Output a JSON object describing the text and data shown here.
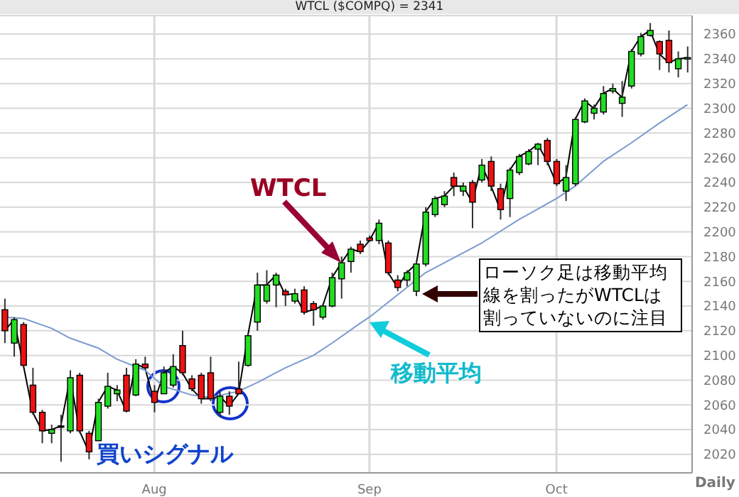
{
  "chart_data": {
    "type": "candlestick",
    "title": "WTCL ($COMPQ) = 2341",
    "categories": [
      null,
      null,
      null,
      null,
      null,
      null,
      null,
      null,
      null,
      null,
      null,
      null,
      null,
      null,
      null,
      null,
      "Aug",
      null,
      null,
      null,
      null,
      null,
      null,
      null,
      null,
      null,
      null,
      null,
      null,
      null,
      null,
      null,
      null,
      null,
      null,
      null,
      null,
      null,
      null,
      "Sep",
      null,
      null,
      null,
      null,
      null,
      null,
      null,
      null,
      null,
      null,
      null,
      null,
      null,
      null,
      null,
      null,
      null,
      null,
      null,
      "Oct",
      null,
      null,
      null,
      null,
      null,
      null,
      null,
      null,
      null,
      null,
      null,
      null,
      null,
      null
    ],
    "ohlc": [
      [
        2137,
        2146,
        2110,
        2120
      ],
      [
        2110,
        2131,
        2099,
        2129
      ],
      [
        2125,
        2127,
        2090,
        2092
      ],
      [
        2076,
        2090,
        2052,
        2054
      ],
      [
        2054,
        2056,
        2029,
        2039
      ],
      [
        2037,
        2044,
        2029,
        2040
      ],
      [
        2042,
        2052,
        2014,
        2043
      ],
      [
        2039,
        2088,
        2037,
        2082
      ],
      [
        2084,
        2086,
        2037,
        2039
      ],
      [
        2037,
        2039,
        2016,
        2022
      ],
      [
        2031,
        2065,
        2031,
        2062
      ],
      [
        2059,
        2086,
        2057,
        2075
      ],
      [
        2069,
        2076,
        2063,
        2072
      ],
      [
        2084,
        2090,
        2054,
        2055
      ],
      [
        2068,
        2097,
        2067,
        2093
      ],
      [
        2093,
        2099,
        2090,
        2090
      ],
      [
        2071,
        2076,
        2054,
        2062
      ],
      [
        2069,
        2091,
        2069,
        2086
      ],
      [
        2076,
        2101,
        2074,
        2091
      ],
      [
        2108,
        2120,
        2084,
        2086
      ],
      [
        2081,
        2084,
        2071,
        2073
      ],
      [
        2084,
        2086,
        2061,
        2065
      ],
      [
        2086,
        2099,
        2063,
        2065
      ],
      [
        2054,
        2071,
        2050,
        2067
      ],
      [
        2067,
        2071,
        2052,
        2059
      ],
      [
        2073,
        2095,
        2069,
        2069
      ],
      [
        2092,
        2118,
        2091,
        2116
      ],
      [
        2127,
        2167,
        2120,
        2157
      ],
      [
        2144,
        2169,
        2142,
        2157
      ],
      [
        2157,
        2167,
        2139,
        2165
      ],
      [
        2152,
        2154,
        2140,
        2149
      ],
      [
        2144,
        2154,
        2142,
        2150
      ],
      [
        2153,
        2156,
        2133,
        2135
      ],
      [
        2142,
        2144,
        2124,
        2137
      ],
      [
        2131,
        2142,
        2129,
        2140
      ],
      [
        2140,
        2167,
        2139,
        2163
      ],
      [
        2162,
        2180,
        2146,
        2175
      ],
      [
        2176,
        2188,
        2167,
        2186
      ],
      [
        2190,
        2193,
        2182,
        2184
      ],
      [
        2195,
        2197,
        2192,
        2193
      ],
      [
        2193,
        2210,
        2190,
        2207
      ],
      [
        2191,
        2193,
        2165,
        2167
      ],
      [
        2161,
        2165,
        2152,
        2155
      ],
      [
        2161,
        2169,
        2156,
        2167
      ],
      [
        2152,
        2176,
        2148,
        2174
      ],
      [
        2174,
        2220,
        2172,
        2216
      ],
      [
        2214,
        2229,
        2212,
        2227
      ],
      [
        2222,
        2233,
        2220,
        2229
      ],
      [
        2244,
        2248,
        2229,
        2237
      ],
      [
        2233,
        2240,
        2229,
        2237
      ],
      [
        2240,
        2242,
        2203,
        2224
      ],
      [
        2242,
        2259,
        2240,
        2254
      ],
      [
        2257,
        2261,
        2233,
        2237
      ],
      [
        2235,
        2239,
        2210,
        2218
      ],
      [
        2227,
        2252,
        2212,
        2250
      ],
      [
        2248,
        2263,
        2246,
        2261
      ],
      [
        2255,
        2267,
        2254,
        2265
      ],
      [
        2267,
        2272,
        2254,
        2271
      ],
      [
        2274,
        2276,
        2254,
        2257
      ],
      [
        2257,
        2259,
        2237,
        2239
      ],
      [
        2233,
        2254,
        2225,
        2244
      ],
      [
        2239,
        2293,
        2237,
        2291
      ],
      [
        2289,
        2308,
        2288,
        2306
      ],
      [
        2296,
        2303,
        2291,
        2300
      ],
      [
        2297,
        2318,
        2295,
        2312
      ],
      [
        2314,
        2320,
        2312,
        2316
      ],
      [
        2304,
        2322,
        2293,
        2309
      ],
      [
        2318,
        2348,
        2316,
        2346
      ],
      [
        2344,
        2361,
        2342,
        2358
      ],
      [
        2359,
        2369,
        2358,
        2363
      ],
      [
        2354,
        2355,
        2331,
        2344
      ],
      [
        2355,
        2363,
        2329,
        2337
      ],
      [
        2332,
        2346,
        2325,
        2340
      ],
      [
        2340,
        2350,
        2329,
        2341
      ]
    ],
    "colors": [
      "#ee1111",
      "#22dd22",
      "#ee1111",
      "#ee1111",
      "#ee1111",
      "#22dd22",
      "#000000",
      "#22dd22",
      "#ee1111",
      "#ee1111",
      "#22dd22",
      "#22dd22",
      "#22dd22",
      "#ee1111",
      "#22dd22",
      "#ee1111",
      "#ee1111",
      "#22dd22",
      "#22dd22",
      "#ee1111",
      "#ee1111",
      "#ee1111",
      "#ee1111",
      "#22dd22",
      "#ee1111",
      "#ee1111",
      "#22dd22",
      "#22dd22",
      "#22dd22",
      "#22dd22",
      "#ee1111",
      "#22dd22",
      "#ee1111",
      "#ee1111",
      "#22dd22",
      "#22dd22",
      "#22dd22",
      "#22dd22",
      "#ee1111",
      "#ee1111",
      "#22dd22",
      "#ee1111",
      "#ee1111",
      "#22dd22",
      "#22dd22",
      "#22dd22",
      "#22dd22",
      "#22dd22",
      "#ee1111",
      "#22dd22",
      "#ee1111",
      "#22dd22",
      "#ee1111",
      "#ee1111",
      "#22dd22",
      "#22dd22",
      "#22dd22",
      "#22dd22",
      "#ee1111",
      "#ee1111",
      "#22dd22",
      "#22dd22",
      "#22dd22",
      "#22dd22",
      "#22dd22",
      "#22dd22",
      "#22dd22",
      "#22dd22",
      "#22dd22",
      "#22dd22",
      "#ee1111",
      "#ee1111",
      "#22dd22",
      "#22dd22"
    ],
    "series": [
      {
        "type": "line",
        "color": "#000000",
        "values": [
          2120,
          2129,
          2092,
          2054,
          2039,
          2040,
          2043,
          2082,
          2039,
          2022,
          2062,
          2075,
          2072,
          2055,
          2093,
          2090,
          2062,
          2086,
          2091,
          2086,
          2073,
          2065,
          2065,
          2067,
          2059,
          2069,
          2116,
          2157,
          2157,
          2165,
          2149,
          2150,
          2135,
          2137,
          2140,
          2163,
          2175,
          2186,
          2184,
          2193,
          2207,
          2167,
          2155,
          2167,
          2174,
          2216,
          2227,
          2229,
          2237,
          2237,
          2224,
          2254,
          2237,
          2218,
          2250,
          2261,
          2265,
          2271,
          2257,
          2239,
          2244,
          2291,
          2306,
          2300,
          2312,
          2316,
          2309,
          2346,
          2358,
          2363,
          2344,
          2337,
          2340,
          2341
        ]
      },
      {
        "type": "line",
        "color": "#7b9bd0",
        "values": [
          2131,
          null,
          2130,
          null,
          null,
          2122,
          null,
          2114,
          null,
          null,
          2106,
          null,
          2097,
          null,
          null,
          2088,
          null,
          2075,
          null,
          null,
          2068,
          null,
          2066,
          null,
          null,
          2071,
          null,
          2078,
          null,
          null,
          2090,
          null,
          null,
          2100,
          null,
          2110,
          null,
          null,
          2126,
          2131,
          null,
          null,
          null,
          null,
          null,
          2167,
          null,
          null,
          null,
          null,
          null,
          2191,
          null,
          null,
          null,
          2210,
          null,
          null,
          null,
          2227,
          null,
          2237,
          null,
          null,
          2257,
          null,
          null,
          2272,
          null,
          null,
          2288,
          null,
          null,
          2303
        ]
      }
    ],
    "ylim": [
      2005,
      2375
    ],
    "yticks": [
      2020,
      2040,
      2060,
      2080,
      2100,
      2120,
      2140,
      2160,
      2180,
      2200,
      2220,
      2240,
      2260,
      2280,
      2300,
      2320,
      2340,
      2360
    ],
    "grid": true,
    "annotations": [
      "WTCL",
      "移動平均",
      "買いシグナル",
      "ローソク足は移動平均線を割ったがWTCLは割っていないのに注目",
      "Daily"
    ]
  }
}
